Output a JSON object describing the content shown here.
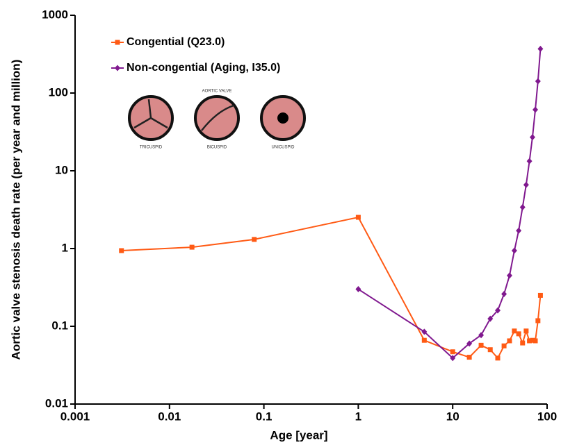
{
  "chart_data": {
    "type": "line",
    "x_label": "Age [year]",
    "y_label": "Aortic valve stenosis death rate (per year and million)",
    "x_log": true,
    "y_log": true,
    "xlim": [
      0.001,
      100
    ],
    "ylim": [
      0.01,
      1000
    ],
    "xticks": [
      0.001,
      0.01,
      0.1,
      1,
      10,
      100
    ],
    "yticks": [
      0.01,
      0.1,
      1,
      10,
      100,
      1000
    ],
    "legend": "upper-left",
    "annotations": [
      "AORTIC VALVE",
      "TRICUSPID",
      "BICUSPID",
      "UNICUSPID"
    ],
    "series": [
      {
        "name": "Congential (Q23.0)",
        "color": "#ff5a14",
        "marker": "square",
        "x": [
          0.0031,
          0.0173,
          0.079,
          1,
          5,
          10,
          15,
          20,
          25,
          30,
          35,
          40,
          45,
          50,
          55,
          60,
          65,
          70,
          75,
          80,
          85
        ],
        "values": [
          0.94,
          1.04,
          1.31,
          2.52,
          0.066,
          0.047,
          0.04,
          0.057,
          0.05,
          0.039,
          0.056,
          0.065,
          0.087,
          0.08,
          0.061,
          0.087,
          0.065,
          0.066,
          0.065,
          0.118,
          0.25
        ]
      },
      {
        "name": "Non-congential (Aging, I35.0)",
        "color": "#80198f",
        "marker": "diamond",
        "x": [
          1,
          5,
          10,
          15,
          20,
          25,
          30,
          35,
          40,
          45,
          50,
          55,
          60,
          65,
          70,
          75,
          80,
          85
        ],
        "values": [
          0.3,
          0.085,
          0.039,
          0.06,
          0.077,
          0.125,
          0.16,
          0.26,
          0.45,
          0.94,
          1.7,
          3.4,
          6.6,
          13.3,
          27,
          61,
          142,
          370
        ]
      }
    ]
  }
}
